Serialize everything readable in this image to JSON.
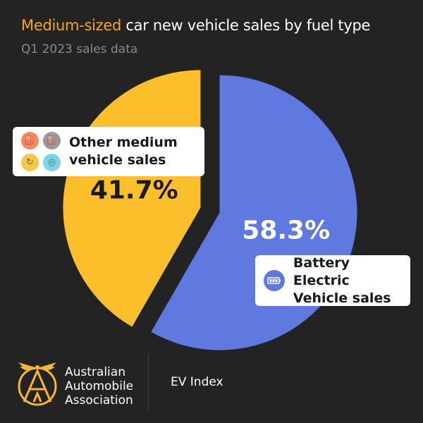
{
  "header": {
    "title_accent": "Medium-sized",
    "title_rest": " car new vehicle sales by fuel type",
    "subtitle": "Q1 2023 sales data"
  },
  "chart_data": {
    "type": "pie",
    "series": [
      {
        "name": "Battery Electric Vehicle sales",
        "value": 58.3,
        "label": "58.3%",
        "color": "#6079e0"
      },
      {
        "name": "Other medium vehicle sales",
        "value": 41.7,
        "label": "41.7%",
        "color": "#fbbf2c"
      }
    ]
  },
  "legend": {
    "other_line1": "Other medium",
    "other_line2": "vehicle sales",
    "bev_line1": "Battery Electric",
    "bev_line2": "Vehicle sales",
    "icons": [
      "petrol-icon",
      "diesel-icon",
      "hybrid-icon",
      "plug-in-hybrid-icon",
      "battery-icon"
    ],
    "icon_colors": [
      "#f08a5d",
      "#9a9a9a",
      "#f5c84c",
      "#7fd3e6"
    ]
  },
  "footer": {
    "org_line1": "Australian",
    "org_line2": "Automobile",
    "org_line3": "Association",
    "product": "EV Index"
  },
  "colors": {
    "background": "#232323",
    "accent": "#f5a623",
    "subtitle": "#8a8a8a",
    "logo": "#f5b82e"
  }
}
